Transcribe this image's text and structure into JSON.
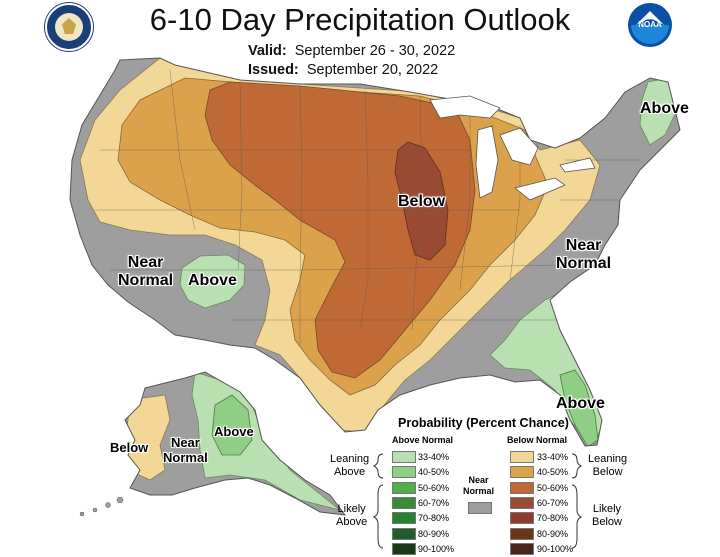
{
  "title": "6-10 Day Precipitation Outlook",
  "valid_label": "Valid:",
  "valid_dates": "September 26 - 30, 2022",
  "issued_label": "Issued:",
  "issued_date": "September 20, 2022",
  "map_labels": {
    "above_ne": "Above",
    "below_mw": "Below",
    "near_normal_east": "Near\nNormal",
    "near_normal_west": "Near\nNormal",
    "above_sw": "Above",
    "above_fl": "Above",
    "below_ak": "Below",
    "near_normal_ak": "Near\nNormal",
    "above_ak": "Above"
  },
  "legend": {
    "title": "Probability (Percent Chance)",
    "above_header": "Above Normal",
    "below_header": "Below Normal",
    "leaning_above": "Leaning\nAbove",
    "likely_above": "Likely\nAbove",
    "leaning_below": "Leaning\nBelow",
    "likely_below": "Likely\nBelow",
    "near_normal": "Near\nNormal",
    "above_items": [
      {
        "range": "33-40%",
        "color": "#b8e0b0"
      },
      {
        "range": "40-50%",
        "color": "#8fcf85"
      },
      {
        "range": "50-60%",
        "color": "#4fb04a"
      },
      {
        "range": "60-70%",
        "color": "#3a8a3a"
      },
      {
        "range": "70-80%",
        "color": "#23822b"
      },
      {
        "range": "80-90%",
        "color": "#1f5d2a"
      },
      {
        "range": "90-100%",
        "color": "#173a15"
      }
    ],
    "below_items": [
      {
        "range": "33-40%",
        "color": "#f3d796"
      },
      {
        "range": "40-50%",
        "color": "#dba24b"
      },
      {
        "range": "50-60%",
        "color": "#bf6a34"
      },
      {
        "range": "60-70%",
        "color": "#9a4a33"
      },
      {
        "range": "70-80%",
        "color": "#8f3a2a"
      },
      {
        "range": "80-90%",
        "color": "#6e3514"
      },
      {
        "range": "90-100%",
        "color": "#4a2618"
      }
    ],
    "near_color": "#9e9e9e"
  }
}
